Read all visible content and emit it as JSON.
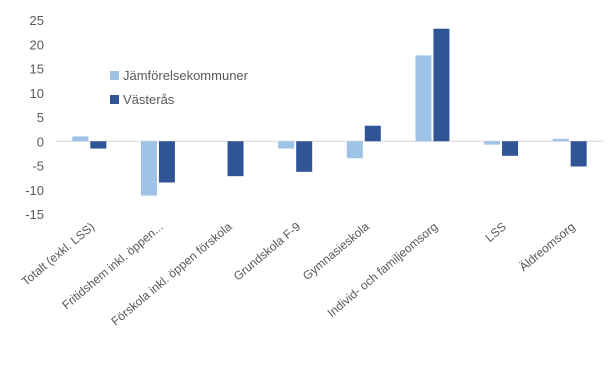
{
  "chart_data": {
    "type": "bar",
    "categories": [
      "Totalt (exkl. LSS)",
      "Fritidshem inkl. öppen...",
      "Förskola inkl. öppen förskola",
      "Grundskola F-9",
      "Gymnasieskola",
      "Individ- och familjeomsorg",
      "LSS",
      "Äldreomsorg"
    ],
    "series": [
      {
        "name": "Jämförelsekommuner",
        "color": "#9dc3e6",
        "values": [
          1.0,
          -11.2,
          0.0,
          -1.5,
          -3.5,
          17.7,
          -0.7,
          0.5
        ]
      },
      {
        "name": "Västerås",
        "color": "#2f5597",
        "values": [
          -1.5,
          -8.5,
          -7.2,
          -6.3,
          3.2,
          23.2,
          -3.0,
          -5.2
        ]
      }
    ],
    "y_ticks": [
      "25",
      "20",
      "15",
      "10",
      "5",
      "0",
      "-5",
      "-10",
      "-15"
    ],
    "ylim": [
      -15,
      25
    ],
    "grid": false,
    "legend_position": "upper-middle",
    "title": "",
    "xlabel": "",
    "ylabel": ""
  }
}
